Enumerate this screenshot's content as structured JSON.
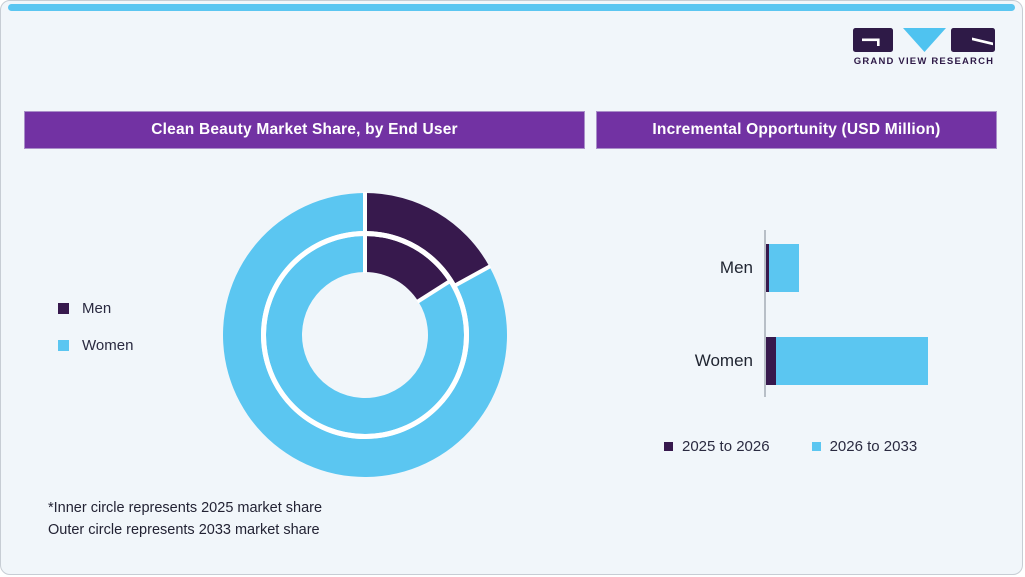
{
  "brand": {
    "logo_text": "GRAND VIEW RESEARCH",
    "logo_colors": {
      "block": "#2E1A47",
      "triangle": "#4FC3F0"
    }
  },
  "left_panel": {
    "title": "Clean Beauty Market Share, by End User",
    "legend": {
      "items": [
        {
          "label": "Men",
          "color": "#37194D"
        },
        {
          "label": "Women",
          "color": "#5BC6F1"
        }
      ]
    },
    "footnote": {
      "line1": "*Inner circle represents 2025 market share",
      "line2": "Outer circle represents 2033 market share"
    }
  },
  "right_panel": {
    "title": "Incremental Opportunity (USD Million)",
    "legend": {
      "items": [
        {
          "label": "2025 to 2026",
          "color": "#37194D"
        },
        {
          "label": "2026 to 2033",
          "color": "#5BC6F1"
        }
      ]
    }
  },
  "chart_data": [
    {
      "type": "pie",
      "variant": "nested-donut",
      "title": "Clean Beauty Market Share, by End User",
      "categories": [
        "Men",
        "Women"
      ],
      "series": [
        {
          "name": "2025 market share (inner circle)",
          "ring": "inner",
          "values": [
            16,
            84
          ]
        },
        {
          "name": "2033 market share (outer circle)",
          "ring": "outer",
          "values": [
            17,
            83
          ]
        }
      ],
      "unit": "percent",
      "colors": [
        "#37194D",
        "#5BC6F1"
      ],
      "start_angle_deg": 0,
      "legend_position": "left",
      "footnote": "*Inner circle represents 2025 market share; Outer circle represents 2033 market share"
    },
    {
      "type": "bar",
      "orientation": "horizontal",
      "stacked": true,
      "title": "Incremental Opportunity (USD Million)",
      "categories": [
        "Men",
        "Women"
      ],
      "series": [
        {
          "name": "2025 to 2026",
          "color": "#37194D",
          "values": [
            3,
            10
          ]
        },
        {
          "name": "2026 to 2033",
          "color": "#5BC6F1",
          "values": [
            30,
            152
          ]
        }
      ],
      "value_axis": "hidden",
      "values_note": "no numeric labels shown in figure; values are relative magnitudes estimated from bar lengths",
      "legend_position": "bottom"
    }
  ],
  "colors": {
    "accent_blue": "#5BC6F1",
    "accent_dark_purple": "#37194D",
    "header_purple": "#7232A3",
    "header_border": "#A98FC9",
    "background": "#F1F6FA",
    "card_border": "#C7CDD4",
    "text": "#232334"
  }
}
